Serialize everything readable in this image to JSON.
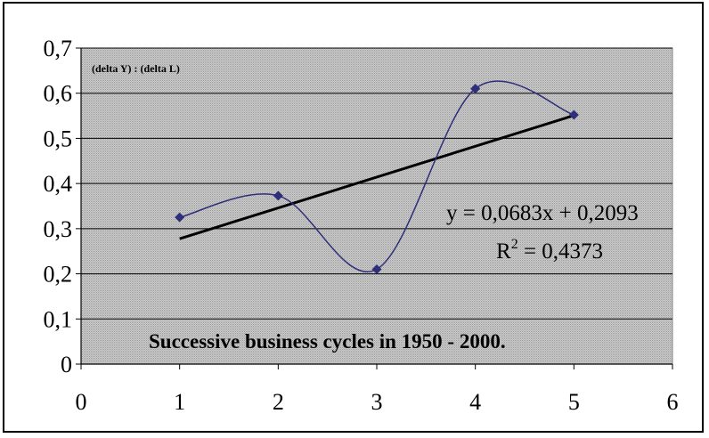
{
  "chart_data": {
    "type": "scatter",
    "series": [
      {
        "name": "(delta Y) : (delta L)",
        "x": [
          1,
          2,
          3,
          4,
          5
        ],
        "y": [
          0.325,
          0.373,
          0.21,
          0.61,
          0.552
        ],
        "color": "#2e2e7a",
        "marker": "diamond",
        "line": "smoothed"
      }
    ],
    "trendline": {
      "type": "linear",
      "slope": 0.0683,
      "intercept": 0.2093,
      "x_range": [
        1,
        5
      ],
      "color": "#000000",
      "equation_label": "y = 0,0683x + 0,2093",
      "r2_label_prefix": "R",
      "r2_label_sup": "2",
      "r2_label_value": " = 0,4373"
    },
    "annotation": "Successive business cycles in 1950 - 2000.",
    "xlim": [
      0,
      6
    ],
    "ylim": [
      0,
      0.7
    ],
    "x_ticks": [
      0,
      1,
      2,
      3,
      4,
      5,
      6
    ],
    "x_tick_labels": [
      "0",
      "1",
      "2",
      "3",
      "4",
      "5",
      "6"
    ],
    "y_ticks": [
      0,
      0.1,
      0.2,
      0.3,
      0.4,
      0.5,
      0.6,
      0.7
    ],
    "y_tick_labels": [
      "0",
      "0,1",
      "0,2",
      "0,3",
      "0,4",
      "0,5",
      "0,6",
      "0,7"
    ],
    "grid": "horizontal",
    "plot_background": "#c0c0c0",
    "title": "",
    "xlabel": "",
    "ylabel": ""
  }
}
